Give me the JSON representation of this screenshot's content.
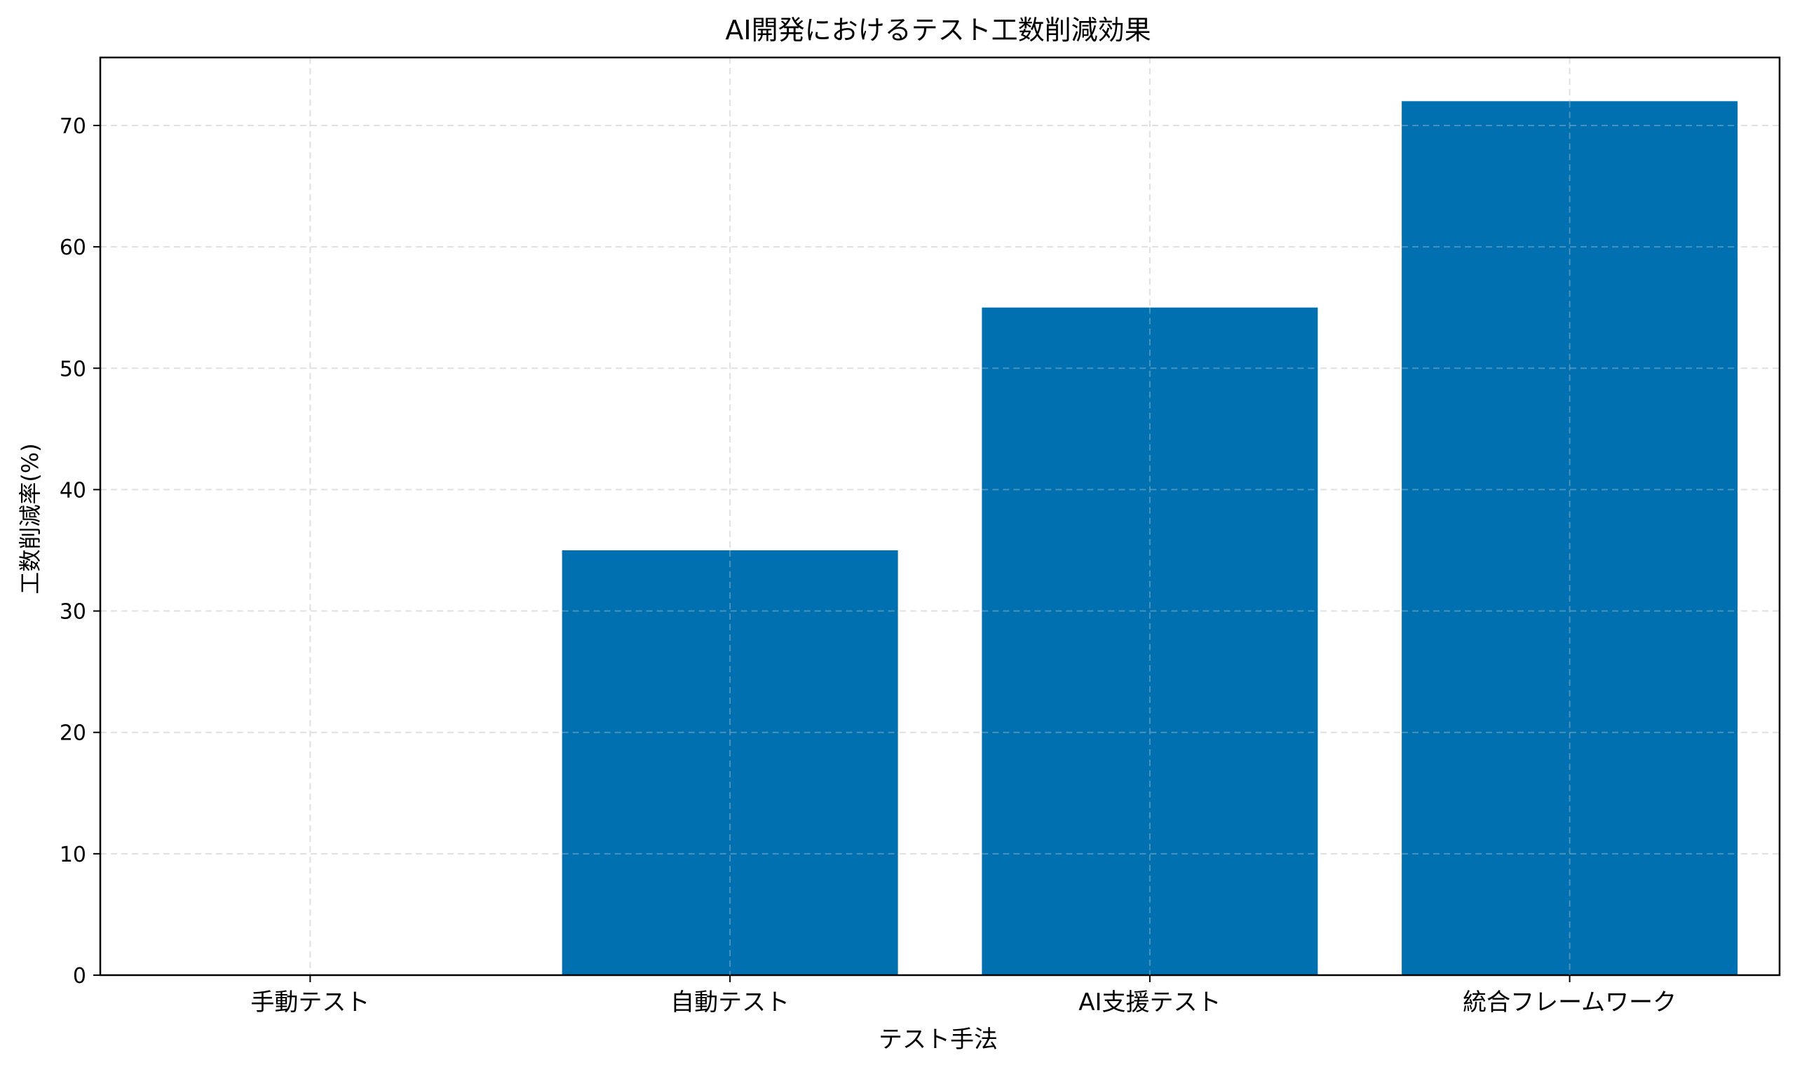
{
  "chart_data": {
    "type": "bar",
    "title": "AI開発におけるテスト工数削減効果",
    "xlabel": "テスト手法",
    "ylabel": "工数削減率(%)",
    "categories": [
      "手動テスト",
      "自動テスト",
      "AI支援テスト",
      "統合フレームワーク"
    ],
    "values": [
      0,
      35,
      55,
      72
    ],
    "ylim": [
      0,
      75.6
    ],
    "yticks": [
      0,
      10,
      20,
      30,
      40,
      50,
      60,
      70
    ],
    "grid": true,
    "legend": "none",
    "bar_color": "#0070b0",
    "grid_color": "#e0e0e0"
  }
}
